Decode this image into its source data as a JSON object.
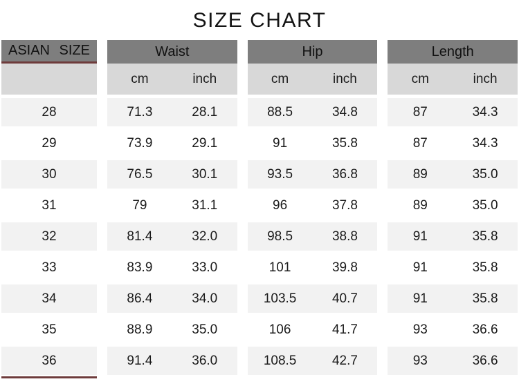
{
  "colors": {
    "header_bg": "#7e7e7e",
    "subheader_bg": "#d8d8d8",
    "row_alt_bg": "#f2f2f2",
    "accent_line": "#6e3b3b",
    "text": "#1b1b1b"
  },
  "chart_data": {
    "type": "table",
    "title": "SIZE CHART",
    "size_column_header": "ASIAN SIZE",
    "group_headers": [
      "Waist",
      "Hip",
      "Length"
    ],
    "unit_headers": [
      "cm",
      "inch"
    ],
    "rows": [
      {
        "size": "28",
        "values": [
          [
            "71.3",
            "28.1"
          ],
          [
            "88.5",
            "34.8"
          ],
          [
            "87",
            "34.3"
          ]
        ]
      },
      {
        "size": "29",
        "values": [
          [
            "73.9",
            "29.1"
          ],
          [
            "91",
            "35.8"
          ],
          [
            "87",
            "34.3"
          ]
        ]
      },
      {
        "size": "30",
        "values": [
          [
            "76.5",
            "30.1"
          ],
          [
            "93.5",
            "36.8"
          ],
          [
            "89",
            "35.0"
          ]
        ]
      },
      {
        "size": "31",
        "values": [
          [
            "79",
            "31.1"
          ],
          [
            "96",
            "37.8"
          ],
          [
            "89",
            "35.0"
          ]
        ]
      },
      {
        "size": "32",
        "values": [
          [
            "81.4",
            "32.0"
          ],
          [
            "98.5",
            "38.8"
          ],
          [
            "91",
            "35.8"
          ]
        ]
      },
      {
        "size": "33",
        "values": [
          [
            "83.9",
            "33.0"
          ],
          [
            "101",
            "39.8"
          ],
          [
            "91",
            "35.8"
          ]
        ]
      },
      {
        "size": "34",
        "values": [
          [
            "86.4",
            "34.0"
          ],
          [
            "103.5",
            "40.7"
          ],
          [
            "91",
            "35.8"
          ]
        ]
      },
      {
        "size": "35",
        "values": [
          [
            "88.9",
            "35.0"
          ],
          [
            "106",
            "41.7"
          ],
          [
            "93",
            "36.6"
          ]
        ]
      },
      {
        "size": "36",
        "values": [
          [
            "91.4",
            "36.0"
          ],
          [
            "108.5",
            "42.7"
          ],
          [
            "93",
            "36.6"
          ]
        ]
      }
    ]
  }
}
